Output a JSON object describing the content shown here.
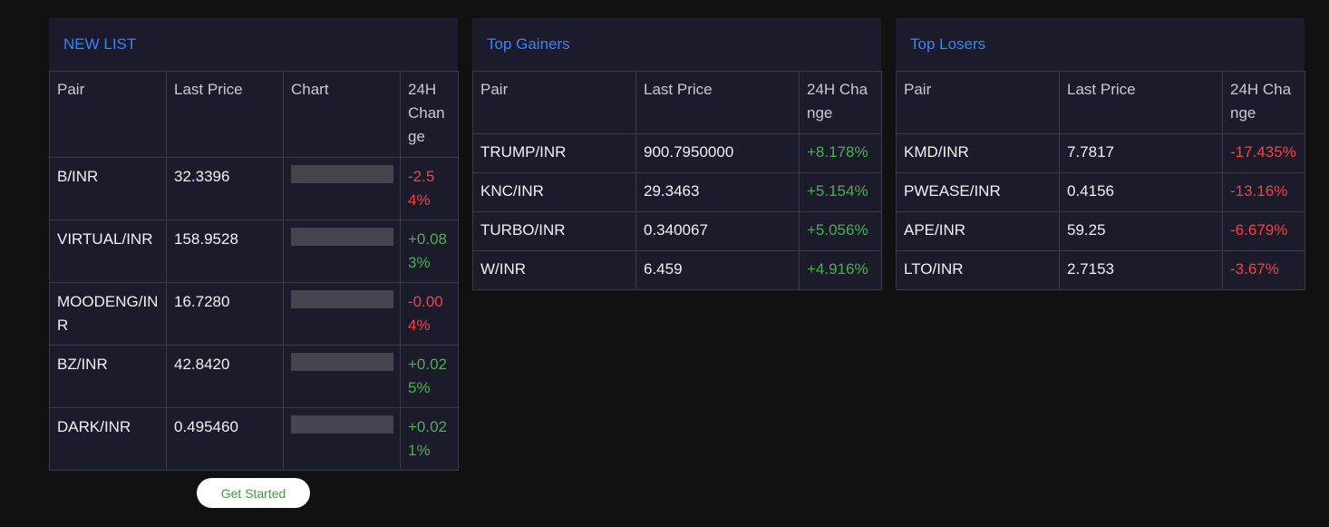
{
  "new_list": {
    "title": "NEW LIST",
    "headers": [
      "Pair",
      "Last Price",
      "Chart",
      "24H Change"
    ],
    "rows": [
      {
        "pair": "B/INR",
        "price": "32.3396",
        "change": "-2.54%",
        "dir": "neg"
      },
      {
        "pair": "VIRTUAL/INR",
        "price": "158.9528",
        "change": "+0.083%",
        "dir": "pos"
      },
      {
        "pair": "MOODENG/INR",
        "price": "16.7280",
        "change": "-0.004%",
        "dir": "neg"
      },
      {
        "pair": "BZ/INR",
        "price": "42.8420",
        "change": "+0.025%",
        "dir": "pos"
      },
      {
        "pair": "DARK/INR",
        "price": "0.495460",
        "change": "+0.021%",
        "dir": "pos"
      }
    ]
  },
  "top_gainers": {
    "title": "Top Gainers",
    "headers": [
      "Pair",
      "Last Price",
      "24H Change"
    ],
    "rows": [
      {
        "pair": "TRUMP/INR",
        "price": "900.7950000",
        "change": "+8.178%",
        "dir": "pos"
      },
      {
        "pair": "KNC/INR",
        "price": "29.3463",
        "change": "+5.154%",
        "dir": "pos"
      },
      {
        "pair": "TURBO/INR",
        "price": "0.340067",
        "change": "+5.056%",
        "dir": "pos"
      },
      {
        "pair": "W/INR",
        "price": "6.459",
        "change": "+4.916%",
        "dir": "pos"
      }
    ]
  },
  "top_losers": {
    "title": "Top Losers",
    "headers": [
      "Pair",
      "Last Price",
      "24H Change"
    ],
    "rows": [
      {
        "pair": "KMD/INR",
        "price": "7.7817",
        "change": "-17.435%",
        "dir": "neg"
      },
      {
        "pair": "PWEASE/INR",
        "price": "0.4156",
        "change": "-13.16%",
        "dir": "neg"
      },
      {
        "pair": "APE/INR",
        "price": "59.25",
        "change": "-6.679%",
        "dir": "neg"
      },
      {
        "pair": "LTO/INR",
        "price": "2.7153",
        "change": "-3.67%",
        "dir": "neg"
      }
    ]
  },
  "cta": {
    "label": "Get Started"
  },
  "colors": {
    "accent": "#3b82f6",
    "positive": "#4caf50",
    "negative": "#ef4444",
    "panel_bg": "#1b1b2b",
    "page_bg": "#111112"
  }
}
